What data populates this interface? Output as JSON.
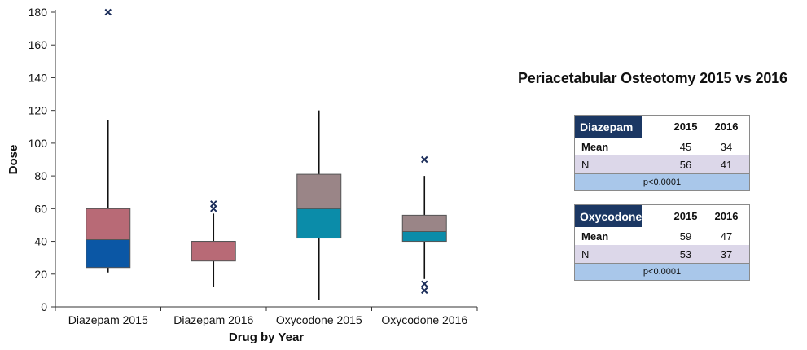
{
  "chart_data": {
    "type": "box",
    "title": "Periacetabular Osteotomy 2015 vs 2016",
    "xlabel": "Drug by Year",
    "ylabel": "Dose",
    "ylim": [
      0,
      180
    ],
    "yticks": [
      0,
      20,
      40,
      60,
      80,
      100,
      120,
      140,
      160,
      180
    ],
    "grid": false,
    "categories": [
      "Diazepam 2015",
      "Diazepam 2016",
      "Oxycodone 2015",
      "Oxycodone 2016"
    ],
    "boxes": [
      {
        "category": "Diazepam 2015",
        "whisker_low": 21,
        "q1": 24,
        "median": 41,
        "q3": 60,
        "whisker_high": 114,
        "outliers": [
          180
        ],
        "upper_color": "#b86a76",
        "lower_color": "#0b57a5"
      },
      {
        "category": "Diazepam 2016",
        "whisker_low": 12,
        "q1": 28,
        "median": 40,
        "q3": 40,
        "whisker_high": 57,
        "outliers": [
          60,
          63
        ],
        "upper_color": "#b86a76",
        "lower_color": "#b86a76"
      },
      {
        "category": "Oxycodone 2015",
        "whisker_low": 4,
        "q1": 42,
        "median": 60,
        "q3": 81,
        "whisker_high": 120,
        "outliers": [],
        "upper_color": "#9a8587",
        "lower_color": "#0b8ca9"
      },
      {
        "category": "Oxycodone 2016",
        "whisker_low": 17,
        "q1": 40,
        "median": 46,
        "q3": 56,
        "whisker_high": 80,
        "outliers": [
          90,
          14,
          10
        ],
        "upper_color": "#9a8587",
        "lower_color": "#0b8ca9"
      }
    ]
  },
  "tables": [
    {
      "drug": "Diazepam",
      "col1": "2015",
      "col2": "2016",
      "rows": [
        {
          "label": "Mean",
          "v2015": "45",
          "v2016": "34"
        },
        {
          "label": "N",
          "v2015": "56",
          "v2016": "41"
        }
      ],
      "pvalue": "p<0.0001"
    },
    {
      "drug": "Oxycodone",
      "col1": "2015",
      "col2": "2016",
      "rows": [
        {
          "label": "Mean",
          "v2015": "59",
          "v2016": "47"
        },
        {
          "label": "N",
          "v2015": "53",
          "v2016": "37"
        }
      ],
      "pvalue": "p<0.0001"
    }
  ]
}
